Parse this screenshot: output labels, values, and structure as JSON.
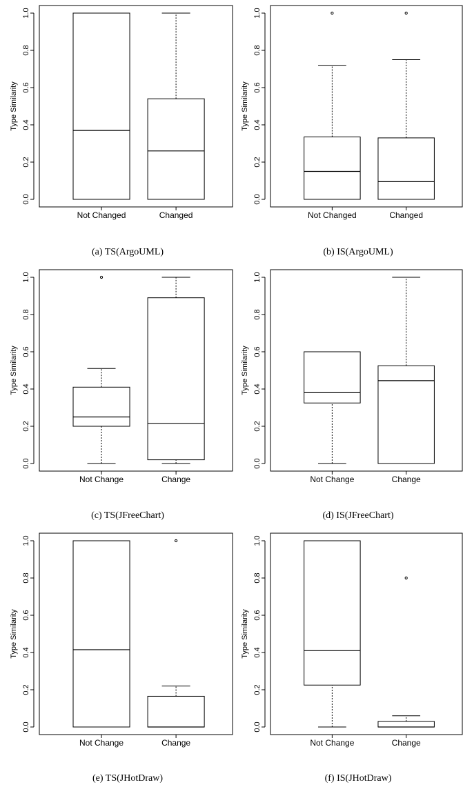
{
  "chart_data": [
    {
      "type": "boxplot",
      "caption": "(a) TS(ArgoUML)",
      "ylabel": "Type Similarity",
      "ylim": [
        0,
        1
      ],
      "yticks": [
        "0.0",
        "0.2",
        "0.4",
        "0.6",
        "0.8",
        "1.0"
      ],
      "categories": [
        "Not Changed",
        "Changed"
      ],
      "boxes": [
        {
          "min": 0.0,
          "q1": 0.0,
          "median": 0.37,
          "q3": 1.0,
          "max": 1.0,
          "outliers": []
        },
        {
          "min": 0.0,
          "q1": 0.0,
          "median": 0.26,
          "q3": 0.54,
          "max": 1.0,
          "outliers": []
        }
      ]
    },
    {
      "type": "boxplot",
      "caption": "(b) IS(ArgoUML)",
      "ylabel": "Type Similarity",
      "ylim": [
        0,
        1
      ],
      "yticks": [
        "0.0",
        "0.2",
        "0.4",
        "0.6",
        "0.8",
        "1.0"
      ],
      "categories": [
        "Not Changed",
        "Changed"
      ],
      "boxes": [
        {
          "min": 0.0,
          "q1": 0.0,
          "median": 0.15,
          "q3": 0.335,
          "max": 0.72,
          "outliers": [
            1.0
          ]
        },
        {
          "min": 0.0,
          "q1": 0.0,
          "median": 0.095,
          "q3": 0.33,
          "max": 0.75,
          "outliers": [
            1.0
          ]
        }
      ]
    },
    {
      "type": "boxplot",
      "caption": "(c) TS(JFreeChart)",
      "ylabel": "Type Similarity",
      "ylim": [
        0,
        1
      ],
      "yticks": [
        "0.0",
        "0.2",
        "0.4",
        "0.6",
        "0.8",
        "1.0"
      ],
      "categories": [
        "Not Change",
        "Change"
      ],
      "boxes": [
        {
          "min": 0.0,
          "q1": 0.2,
          "median": 0.25,
          "q3": 0.41,
          "max": 0.51,
          "outliers": [
            1.0
          ]
        },
        {
          "min": 0.0,
          "q1": 0.02,
          "median": 0.215,
          "q3": 0.89,
          "max": 1.0,
          "outliers": []
        }
      ]
    },
    {
      "type": "boxplot",
      "caption": "(d) IS(JFreeChart)",
      "ylabel": "Type Similarity",
      "ylim": [
        0,
        1
      ],
      "yticks": [
        "0.0",
        "0.2",
        "0.4",
        "0.6",
        "0.8",
        "1.0"
      ],
      "categories": [
        "Not Change",
        "Change"
      ],
      "boxes": [
        {
          "min": 0.0,
          "q1": 0.325,
          "median": 0.38,
          "q3": 0.6,
          "max": 0.6,
          "outliers": []
        },
        {
          "min": 0.0,
          "q1": 0.0,
          "median": 0.445,
          "q3": 0.525,
          "max": 1.0,
          "outliers": []
        }
      ]
    },
    {
      "type": "boxplot",
      "caption": "(e) TS(JHotDraw)",
      "ylabel": "Type Similarity",
      "ylim": [
        0,
        1
      ],
      "yticks": [
        "0.0",
        "0.2",
        "0.4",
        "0.6",
        "0.8",
        "1.0"
      ],
      "categories": [
        "Not Change",
        "Change"
      ],
      "boxes": [
        {
          "min": 0.0,
          "q1": 0.0,
          "median": 0.415,
          "q3": 1.0,
          "max": 1.0,
          "outliers": []
        },
        {
          "min": 0.0,
          "q1": 0.0,
          "median": 0.0,
          "q3": 0.165,
          "max": 0.22,
          "outliers": [
            1.0
          ]
        }
      ]
    },
    {
      "type": "boxplot",
      "caption": "(f) IS(JHotDraw)",
      "ylabel": "Type Similarity",
      "ylim": [
        0,
        1
      ],
      "yticks": [
        "0.0",
        "0.2",
        "0.4",
        "0.6",
        "0.8",
        "1.0"
      ],
      "categories": [
        "Not Change",
        "Change"
      ],
      "boxes": [
        {
          "min": 0.0,
          "q1": 0.225,
          "median": 0.41,
          "q3": 1.0,
          "max": 1.0,
          "outliers": []
        },
        {
          "min": 0.0,
          "q1": 0.0,
          "median": 0.0,
          "q3": 0.03,
          "max": 0.06,
          "outliers": [
            0.8
          ]
        }
      ]
    }
  ]
}
